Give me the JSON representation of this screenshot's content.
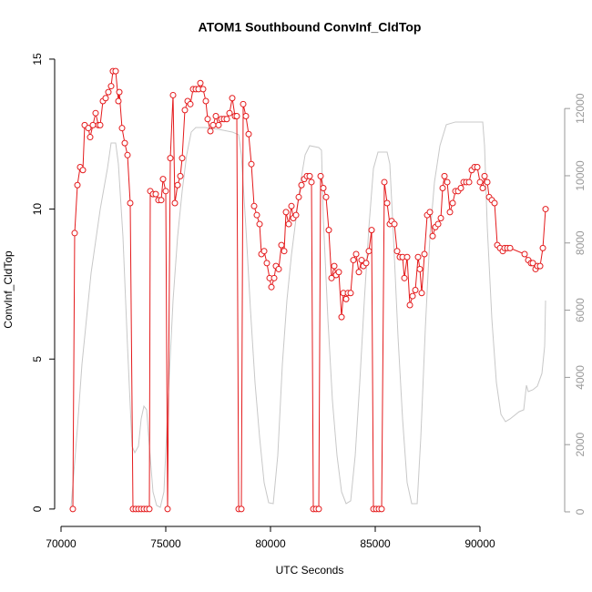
{
  "chart_data": {
    "type": "line",
    "title": "ATOM1 Southbound ConvInf_CldTop",
    "xlabel": "UTC Seconds",
    "ylabel": "ConvInf_CldTop",
    "xlim": [
      69696,
      94043
    ],
    "ylim": [
      -0.58,
      15.18
    ],
    "y2lim": [
      -434,
      13630
    ],
    "xticks": [
      70000,
      75000,
      80000,
      85000,
      90000
    ],
    "yticks": [
      0,
      5,
      10,
      15
    ],
    "y2ticks": [
      0,
      2000,
      4000,
      6000,
      8000,
      10000,
      12000
    ],
    "series": [
      {
        "color": "#e41a1c",
        "marker": "circle",
        "x": [
          70565,
          70652,
          70783,
          70913,
          71044,
          71130,
          71304,
          71391,
          71522,
          71652,
          71783,
          71870,
          72000,
          72131,
          72261,
          72391,
          72478,
          72609,
          72739,
          72783,
          72913,
          73044,
          73174,
          73304,
          73435,
          73565,
          73696,
          73826,
          73957,
          74087,
          74218,
          74261,
          74391,
          74522,
          74652,
          74783,
          74870,
          75000,
          75087,
          75218,
          75348,
          75435,
          75565,
          75696,
          75783,
          75913,
          76044,
          76174,
          76305,
          76435,
          76565,
          76652,
          76783,
          76913,
          77000,
          77131,
          77261,
          77392,
          77522,
          77652,
          77783,
          77913,
          78044,
          78174,
          78305,
          78392,
          78479,
          78609,
          78696,
          78826,
          78957,
          79087,
          79218,
          79348,
          79479,
          79566,
          79696,
          79826,
          79957,
          80044,
          80174,
          80261,
          80392,
          80522,
          80653,
          80740,
          80870,
          81000,
          81087,
          81218,
          81348,
          81479,
          81609,
          81740,
          81870,
          81957,
          82044,
          82174,
          82305,
          82392,
          82522,
          82653,
          82783,
          82914,
          83044,
          83131,
          83261,
          83392,
          83479,
          83609,
          83696,
          83827,
          83957,
          84088,
          84218,
          84348,
          84435,
          84566,
          84696,
          84827,
          84914,
          85044,
          85175,
          85305,
          85435,
          85566,
          85696,
          85783,
          85914,
          86044,
          86175,
          86305,
          86392,
          86522,
          86653,
          86783,
          86914,
          87044,
          87131,
          87218,
          87349,
          87479,
          87609,
          87740,
          87870,
          88001,
          88131,
          88218,
          88305,
          88436,
          88566,
          88696,
          88827,
          88957,
          89088,
          89218,
          89349,
          89479,
          89609,
          89740,
          89870,
          90001,
          90131,
          90218,
          90349,
          90436,
          90566,
          90696,
          90827,
          90957,
          91088,
          91175,
          91305,
          91436,
          92131,
          92305,
          92436,
          92523,
          92653,
          92740,
          92870,
          93001,
          93131
        ],
        "values": [
          0,
          9.2,
          10.8,
          11.4,
          11.3,
          12.8,
          12.7,
          12.4,
          12.8,
          13.2,
          12.8,
          12.8,
          13.6,
          13.7,
          13.9,
          14.1,
          14.6,
          14.6,
          13.6,
          13.9,
          12.7,
          12.2,
          11.8,
          10.2,
          0,
          0,
          0,
          0,
          0,
          0,
          0,
          10.6,
          10.5,
          10.5,
          10.3,
          10.3,
          11.0,
          10.6,
          0,
          11.7,
          13.8,
          10.2,
          10.8,
          11.1,
          11.7,
          13.3,
          13.6,
          13.5,
          14.0,
          14.0,
          14.0,
          14.2,
          14.0,
          13.6,
          13.0,
          12.6,
          12.8,
          13.1,
          12.8,
          13.0,
          13.0,
          13.0,
          13.2,
          13.7,
          13.1,
          13.1,
          0,
          0,
          13.5,
          13.1,
          12.5,
          11.5,
          10.1,
          9.8,
          9.5,
          8.5,
          8.6,
          8.2,
          7.7,
          7.4,
          7.7,
          8.1,
          8.0,
          8.8,
          8.6,
          9.9,
          9.5,
          10.1,
          9.7,
          9.8,
          10.4,
          10.8,
          11.0,
          11.1,
          11.1,
          10.9,
          0,
          0,
          0,
          11.1,
          10.7,
          10.4,
          9.3,
          7.7,
          8.1,
          7.8,
          7.9,
          6.4,
          7.2,
          7.0,
          7.2,
          7.2,
          8.3,
          8.5,
          7.9,
          8.3,
          8.1,
          8.2,
          8.6,
          9.3,
          0,
          0,
          0,
          0,
          10.9,
          10.2,
          9.5,
          9.6,
          9.5,
          8.6,
          8.4,
          8.4,
          7.7,
          8.4,
          6.8,
          7.1,
          7.3,
          8.4,
          8.0,
          7.2,
          8.5,
          9.8,
          9.9,
          9.1,
          9.4,
          9.5,
          9.7,
          10.7,
          11.1,
          10.9,
          9.9,
          10.2,
          10.6,
          10.6,
          10.7,
          10.9,
          10.9,
          10.9,
          11.3,
          11.4,
          11.4,
          10.9,
          10.7,
          11.1,
          10.9,
          10.4,
          10.3,
          10.2,
          8.8,
          8.7,
          8.6,
          8.7,
          8.7,
          8.7,
          8.5,
          8.3,
          8.2,
          8.2,
          8.0,
          8.1,
          8.1,
          8.7,
          10.0
        ]
      },
      {
        "color": "#c8c8c8",
        "axis": "y2",
        "x": [
          70478,
          70783,
          71000,
          71435,
          71870,
          72217,
          72391,
          72609,
          72739,
          72957,
          73174,
          73391,
          73522,
          73696,
          73826,
          73957,
          74087,
          74218,
          74391,
          74565,
          74739,
          74913,
          75131,
          75348,
          75565,
          75783,
          76000,
          76218,
          76435,
          76870,
          77522,
          78174,
          78479,
          78609,
          78826,
          79044,
          79261,
          79479,
          79696,
          79913,
          80131,
          80348,
          80566,
          80783,
          81000,
          81218,
          81435,
          81653,
          81870,
          82305,
          82435,
          82522,
          82740,
          82957,
          83174,
          83392,
          83609,
          83827,
          84044,
          84261,
          84479,
          84696,
          84914,
          85131,
          85566,
          85696,
          85870,
          86088,
          86305,
          86522,
          86740,
          87001,
          87175,
          87392,
          87609,
          87827,
          88088,
          88392,
          88827,
          90131,
          90218,
          90349,
          90566,
          90783,
          91001,
          91218,
          91436,
          91871,
          92088,
          92218,
          92305,
          92523,
          92740,
          92957,
          93088,
          93131
        ],
        "values": [
          136,
          2493,
          4390,
          7100,
          8997,
          10217,
          10976,
          10976,
          10352,
          8184,
          4932,
          1951,
          1762,
          1951,
          2764,
          3144,
          3035,
          1951,
          596,
          190,
          136,
          596,
          3577,
          6287,
          8184,
          9539,
          10623,
          11301,
          11436,
          11436,
          11382,
          11301,
          11219,
          10623,
          8455,
          6016,
          3848,
          2222,
          867,
          271,
          244,
          1680,
          4390,
          6287,
          7642,
          8726,
          9810,
          10623,
          10894,
          10840,
          10759,
          8726,
          5745,
          3306,
          1680,
          596,
          244,
          325,
          1680,
          3848,
          6287,
          8455,
          10217,
          10705,
          10705,
          10352,
          8184,
          5203,
          2764,
          867,
          244,
          244,
          2222,
          5474,
          8184,
          9810,
          10894,
          11518,
          11599,
          11599,
          10894,
          8455,
          5745,
          3848,
          2900,
          2683,
          2764,
          2981,
          3035,
          3767,
          3577,
          3631,
          3740,
          4119,
          4932,
          6287
        ]
      }
    ]
  }
}
